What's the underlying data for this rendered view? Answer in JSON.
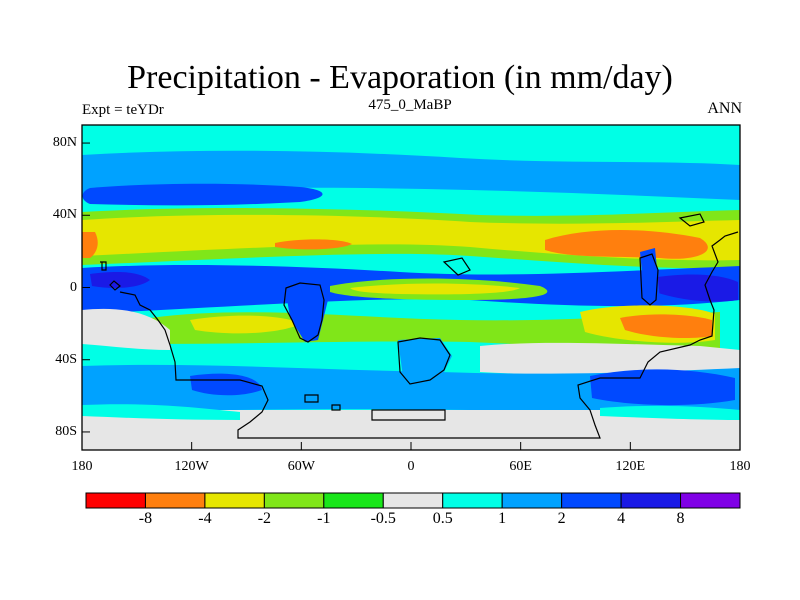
{
  "title": "Precipitation - Evaporation (in mm/day)",
  "left_label": "Expt = teYDr",
  "center_label": "475_0_MaBP",
  "right_label": "ANN",
  "map": {
    "projection": "cylindrical-equidistant",
    "lon_range": [
      -180,
      180
    ],
    "lat_range": [
      -90,
      90
    ],
    "y_ticks": [
      {
        "lat": 80,
        "label": "80N"
      },
      {
        "lat": 40,
        "label": "40N"
      },
      {
        "lat": 0,
        "label": "0"
      },
      {
        "lat": -40,
        "label": "40S"
      },
      {
        "lat": -80,
        "label": "80S"
      }
    ],
    "x_ticks": [
      {
        "lon": -180,
        "label": "180"
      },
      {
        "lon": -120,
        "label": "120W"
      },
      {
        "lon": -60,
        "label": "60W"
      },
      {
        "lon": 0,
        "label": "0"
      },
      {
        "lon": 60,
        "label": "60E"
      },
      {
        "lon": 120,
        "label": "120E"
      },
      {
        "lon": 180,
        "label": "180"
      }
    ]
  },
  "colorbar": {
    "levels": [
      "-8",
      "-4",
      "-2",
      "-1",
      "-0.5",
      "0.5",
      "1",
      "2",
      "4",
      "8"
    ],
    "colors": [
      "#ff0000",
      "#ff7f0e",
      "#e6e600",
      "#80e619",
      "#19e61a",
      "#e6e6e6",
      "#00ffe6",
      "#00a2ff",
      "#0049ff",
      "#1a1ae6",
      "#8000e6"
    ]
  }
}
